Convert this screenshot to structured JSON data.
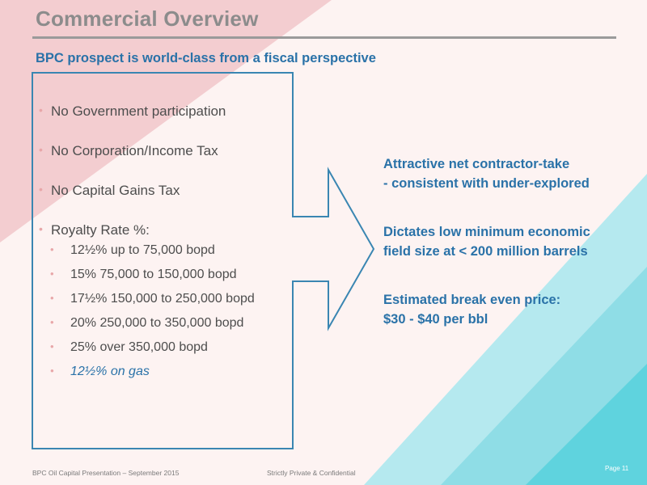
{
  "slide": {
    "title": "Commercial Overview",
    "subtitle": "BPC prospect is world-class from a fiscal perspective"
  },
  "left_bullets": [
    "No Government participation",
    "No Corporation/Income Tax",
    "No Capital Gains Tax",
    "Royalty Rate %:"
  ],
  "royalty_items": [
    "12½% up to 75,000 bopd",
    "15% 75,000 to 150,000 bopd",
    "17½% 150,000 to 250,000 bopd",
    "20% 250,000 to 350,000 bopd",
    "25% over 350,000 bopd"
  ],
  "gas_item": "12½% on gas",
  "right_points": [
    [
      "Attractive net contractor-take",
      "- consistent with under-explored"
    ],
    [
      "Dictates low minimum economic",
      "field size at < 200 million barrels"
    ],
    [
      "Estimated break even price:",
      "$30 - $40 per bbl"
    ]
  ],
  "footer": {
    "left": "BPC Oil Capital Presentation – September 2015",
    "center": "Strictly Private & Confidential",
    "page": "Page 11"
  },
  "colors": {
    "accent_blue": "#2a72a8",
    "title_gray": "#8c8c8c",
    "bullet_pink": "#e8a7a9",
    "teal": "#5fd3de",
    "pink_bg": "#f3cdd0"
  }
}
